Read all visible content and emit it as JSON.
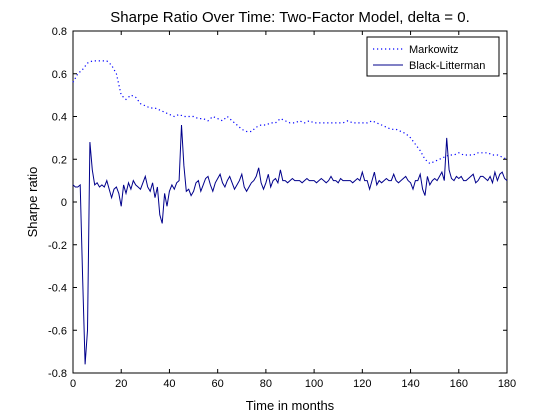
{
  "chart_data": {
    "type": "line",
    "title": "Sharpe Ratio Over Time: Two-Factor Model, delta = 0.",
    "xlabel": "Time in months",
    "ylabel": "Sharpe ratio",
    "xlim": [
      0,
      180
    ],
    "ylim": [
      -0.8,
      0.8
    ],
    "xticks": [
      0,
      20,
      40,
      60,
      80,
      100,
      120,
      140,
      160,
      180
    ],
    "yticks": [
      -0.8,
      -0.6,
      -0.4,
      -0.2,
      0,
      0.2,
      0.4,
      0.6,
      0.8
    ],
    "xtick_labels": [
      "0",
      "20",
      "40",
      "60",
      "80",
      "100",
      "120",
      "140",
      "160",
      "180"
    ],
    "ytick_labels": [
      "-0.8",
      "-0.6",
      "-0.4",
      "-0.2",
      "0",
      "0.2",
      "0.4",
      "0.6",
      "0.8"
    ],
    "grid": false,
    "legend_position": "top-right",
    "series": [
      {
        "name": "Markowitz",
        "style": "dotted",
        "color": "#0000ff",
        "x": [
          0,
          2,
          4,
          6,
          8,
          10,
          12,
          14,
          16,
          18,
          20,
          22,
          24,
          26,
          28,
          30,
          32,
          34,
          36,
          38,
          40,
          42,
          44,
          46,
          48,
          50,
          52,
          54,
          56,
          58,
          60,
          62,
          64,
          66,
          68,
          70,
          72,
          74,
          76,
          78,
          80,
          82,
          84,
          86,
          88,
          90,
          92,
          94,
          96,
          98,
          100,
          102,
          104,
          106,
          108,
          110,
          112,
          114,
          116,
          118,
          120,
          122,
          124,
          126,
          128,
          130,
          132,
          134,
          136,
          138,
          140,
          142,
          144,
          146,
          148,
          150,
          152,
          154,
          156,
          158,
          160,
          162,
          164,
          166,
          168,
          170,
          172,
          174,
          176,
          178,
          180
        ],
        "y": [
          0.56,
          0.6,
          0.62,
          0.65,
          0.66,
          0.66,
          0.66,
          0.66,
          0.64,
          0.6,
          0.5,
          0.48,
          0.5,
          0.49,
          0.46,
          0.45,
          0.44,
          0.44,
          0.43,
          0.42,
          0.41,
          0.4,
          0.41,
          0.4,
          0.4,
          0.4,
          0.39,
          0.39,
          0.38,
          0.4,
          0.39,
          0.38,
          0.4,
          0.38,
          0.36,
          0.34,
          0.33,
          0.33,
          0.35,
          0.36,
          0.36,
          0.37,
          0.37,
          0.39,
          0.38,
          0.37,
          0.37,
          0.38,
          0.37,
          0.38,
          0.37,
          0.37,
          0.37,
          0.37,
          0.37,
          0.37,
          0.37,
          0.38,
          0.37,
          0.37,
          0.37,
          0.37,
          0.38,
          0.37,
          0.36,
          0.35,
          0.34,
          0.34,
          0.33,
          0.32,
          0.3,
          0.27,
          0.24,
          0.2,
          0.18,
          0.19,
          0.2,
          0.21,
          0.22,
          0.22,
          0.23,
          0.22,
          0.22,
          0.22,
          0.23,
          0.23,
          0.23,
          0.22,
          0.22,
          0.21,
          0.2
        ]
      },
      {
        "name": "Black-Litterman",
        "style": "solid",
        "color": "#00008b",
        "x": [
          0,
          1,
          2,
          3,
          4,
          5,
          6,
          7,
          8,
          9,
          10,
          11,
          12,
          13,
          14,
          15,
          16,
          17,
          18,
          19,
          20,
          21,
          22,
          23,
          24,
          25,
          26,
          27,
          28,
          29,
          30,
          31,
          32,
          33,
          34,
          35,
          36,
          37,
          38,
          39,
          40,
          41,
          42,
          43,
          44,
          45,
          46,
          47,
          48,
          49,
          50,
          51,
          52,
          53,
          54,
          55,
          56,
          57,
          58,
          59,
          60,
          61,
          62,
          63,
          64,
          65,
          66,
          67,
          68,
          69,
          70,
          71,
          72,
          73,
          74,
          75,
          76,
          77,
          78,
          79,
          80,
          81,
          82,
          83,
          84,
          85,
          86,
          87,
          88,
          89,
          90,
          91,
          92,
          93,
          94,
          95,
          96,
          97,
          98,
          99,
          100,
          101,
          102,
          103,
          104,
          105,
          106,
          107,
          108,
          109,
          110,
          111,
          112,
          113,
          114,
          115,
          116,
          117,
          118,
          119,
          120,
          121,
          122,
          123,
          124,
          125,
          126,
          127,
          128,
          129,
          130,
          131,
          132,
          133,
          134,
          135,
          136,
          137,
          138,
          139,
          140,
          141,
          142,
          143,
          144,
          145,
          146,
          147,
          148,
          149,
          150,
          151,
          152,
          153,
          154,
          155,
          156,
          157,
          158,
          159,
          160,
          161,
          162,
          163,
          164,
          165,
          166,
          167,
          168,
          169,
          170,
          171,
          172,
          173,
          174,
          175,
          176,
          177,
          178,
          179,
          180
        ],
        "y": [
          0.08,
          0.07,
          0.07,
          0.08,
          -0.35,
          -0.76,
          -0.6,
          0.28,
          0.15,
          0.08,
          0.09,
          0.07,
          0.08,
          0.07,
          0.1,
          0.06,
          0.02,
          0.06,
          0.07,
          0.04,
          -0.02,
          0.08,
          0.04,
          0.09,
          0.06,
          0.1,
          0.08,
          0.07,
          0.06,
          0.09,
          0.12,
          0.07,
          0.05,
          0.09,
          0.02,
          0.07,
          -0.06,
          -0.1,
          0.04,
          -0.02,
          0.05,
          0.08,
          0.06,
          0.09,
          0.1,
          0.36,
          0.17,
          0.05,
          0.06,
          0.03,
          0.05,
          0.09,
          0.1,
          0.05,
          0.08,
          0.11,
          0.12,
          0.08,
          0.05,
          0.09,
          0.11,
          0.13,
          0.09,
          0.07,
          0.1,
          0.12,
          0.09,
          0.06,
          0.08,
          0.1,
          0.13,
          0.07,
          0.05,
          0.07,
          0.09,
          0.1,
          0.12,
          0.16,
          0.09,
          0.06,
          0.09,
          0.13,
          0.07,
          0.1,
          0.11,
          0.09,
          0.15,
          0.1,
          0.1,
          0.09,
          0.1,
          0.11,
          0.1,
          0.1,
          0.1,
          0.09,
          0.1,
          0.11,
          0.1,
          0.1,
          0.1,
          0.09,
          0.1,
          0.11,
          0.1,
          0.09,
          0.1,
          0.12,
          0.1,
          0.1,
          0.09,
          0.11,
          0.1,
          0.1,
          0.1,
          0.1,
          0.09,
          0.1,
          0.11,
          0.1,
          0.14,
          0.1,
          0.1,
          0.06,
          0.1,
          0.14,
          0.08,
          0.1,
          0.09,
          0.1,
          0.11,
          0.1,
          0.1,
          0.13,
          0.1,
          0.09,
          0.1,
          0.11,
          0.12,
          0.1,
          0.09,
          0.06,
          0.1,
          0.1,
          0.13,
          0.06,
          0.03,
          0.12,
          0.08,
          0.1,
          0.11,
          0.1,
          0.12,
          0.14,
          0.1,
          0.3,
          0.15,
          0.11,
          0.1,
          0.12,
          0.11,
          0.12,
          0.1,
          0.1,
          0.11,
          0.12,
          0.13,
          0.09,
          0.1,
          0.12,
          0.12,
          0.11,
          0.1,
          0.12,
          0.09,
          0.14,
          0.1,
          0.13,
          0.14,
          0.11,
          0.1
        ]
      }
    ]
  }
}
